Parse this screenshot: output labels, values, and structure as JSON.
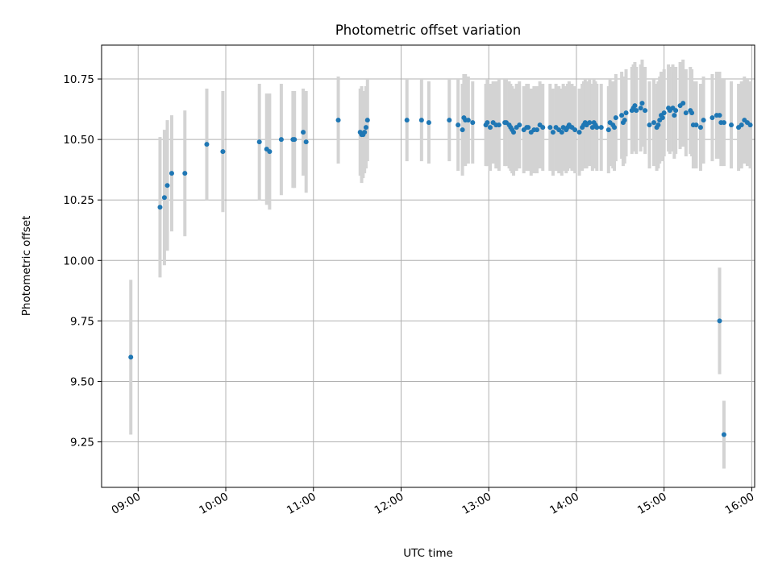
{
  "chart_data": {
    "type": "scatter",
    "title": "Photometric offset variation",
    "xlabel": "UTC time",
    "ylabel": "Photometric offset",
    "grid": true,
    "legend": "none",
    "xlim": [
      "08:35",
      "16:02"
    ],
    "ylim": [
      9.062,
      10.89
    ],
    "x_ticks": [
      "09:00",
      "10:00",
      "11:00",
      "12:00",
      "13:00",
      "14:00",
      "15:00",
      "16:00"
    ],
    "y_ticks": [
      "9.25",
      "9.50",
      "9.75",
      "10.00",
      "10.25",
      "10.50",
      "10.75"
    ],
    "colors": {
      "point": "#1f77b4",
      "errorbar": "#d3d3d3",
      "grid": "#b0b0b0"
    },
    "series": [
      {
        "x": [
          "08:55",
          "09:15",
          "09:18",
          "09:20",
          "09:23",
          "09:32",
          "09:47",
          "09:58",
          "10:23",
          "10:28",
          "10:30",
          "10:38",
          "10:46",
          "10:47",
          "10:53",
          "10:55",
          "11:17",
          "11:32",
          "11:33",
          "11:34",
          "11:35",
          "11:36",
          "11:37",
          "12:04",
          "12:14",
          "12:19",
          "12:33",
          "12:39",
          "12:42",
          "12:43",
          "12:44",
          "12:46",
          "12:49",
          "12:58",
          "12:59",
          "13:01",
          "13:03",
          "13:05",
          "13:07",
          "13:11",
          "13:12",
          "13:14",
          "13:15",
          "13:16",
          "13:17",
          "13:19",
          "13:21",
          "13:24",
          "13:26",
          "13:27",
          "13:29",
          "13:31",
          "13:33",
          "13:35",
          "13:37",
          "13:42",
          "13:44",
          "13:46",
          "13:48",
          "13:50",
          "13:51",
          "13:53",
          "13:54",
          "13:55",
          "13:57",
          "13:59",
          "14:02",
          "14:04",
          "14:05",
          "14:06",
          "14:07",
          "14:09",
          "14:11",
          "14:12",
          "14:13",
          "14:14",
          "14:17",
          "14:22",
          "14:23",
          "14:25",
          "14:26",
          "14:27",
          "14:31",
          "14:32",
          "14:33",
          "14:34",
          "14:38",
          "14:39",
          "14:40",
          "14:41",
          "14:44",
          "14:45",
          "14:47",
          "14:50",
          "14:53",
          "14:55",
          "14:56",
          "14:57",
          "14:58",
          "14:59",
          "15:00",
          "15:03",
          "15:04",
          "15:06",
          "15:07",
          "15:08",
          "15:11",
          "15:13",
          "15:15",
          "15:18",
          "15:19",
          "15:20",
          "15:22",
          "15:25",
          "15:27",
          "15:33",
          "15:36",
          "15:38",
          "15:39",
          "15:41",
          "15:46",
          "15:51",
          "15:53",
          "15:55",
          "15:57",
          "15:59",
          "15:38",
          "15:41"
        ],
        "y": [
          9.6,
          10.22,
          10.26,
          10.31,
          10.36,
          10.36,
          10.48,
          10.45,
          10.49,
          10.46,
          10.45,
          10.5,
          10.5,
          10.5,
          10.53,
          10.49,
          10.58,
          10.53,
          10.52,
          10.52,
          10.53,
          10.55,
          10.58,
          10.58,
          10.58,
          10.57,
          10.58,
          10.56,
          10.54,
          10.59,
          10.58,
          10.58,
          10.57,
          10.56,
          10.57,
          10.55,
          10.57,
          10.56,
          10.56,
          10.57,
          10.57,
          10.56,
          10.55,
          10.54,
          10.53,
          10.55,
          10.56,
          10.54,
          10.55,
          10.55,
          10.53,
          10.54,
          10.54,
          10.56,
          10.55,
          10.55,
          10.53,
          10.55,
          10.54,
          10.53,
          10.55,
          10.54,
          10.55,
          10.56,
          10.55,
          10.54,
          10.53,
          10.55,
          10.56,
          10.57,
          10.56,
          10.57,
          10.55,
          10.57,
          10.56,
          10.55,
          10.55,
          10.54,
          10.57,
          10.56,
          10.55,
          10.59,
          10.6,
          10.57,
          10.58,
          10.61,
          10.62,
          10.63,
          10.64,
          10.62,
          10.63,
          10.65,
          10.62,
          10.56,
          10.57,
          10.55,
          10.56,
          10.58,
          10.6,
          10.59,
          10.61,
          10.63,
          10.62,
          10.63,
          10.6,
          10.62,
          10.64,
          10.65,
          10.61,
          10.62,
          10.61,
          10.56,
          10.56,
          10.55,
          10.58,
          10.59,
          10.6,
          10.6,
          10.57,
          10.57,
          10.56,
          10.55,
          10.56,
          10.58,
          10.57,
          10.56,
          9.75,
          9.28
        ],
        "err": [
          0.32,
          0.29,
          0.28,
          0.27,
          0.24,
          0.26,
          0.23,
          0.25,
          0.24,
          0.23,
          0.24,
          0.23,
          0.2,
          0.2,
          0.18,
          0.21,
          0.18,
          0.18,
          0.2,
          0.18,
          0.17,
          0.17,
          0.17,
          0.17,
          0.17,
          0.17,
          0.17,
          0.19,
          0.19,
          0.18,
          0.19,
          0.18,
          0.17,
          0.17,
          0.18,
          0.18,
          0.17,
          0.18,
          0.19,
          0.18,
          0.18,
          0.18,
          0.18,
          0.18,
          0.18,
          0.18,
          0.18,
          0.18,
          0.18,
          0.18,
          0.18,
          0.18,
          0.18,
          0.18,
          0.18,
          0.18,
          0.18,
          0.18,
          0.18,
          0.18,
          0.18,
          0.18,
          0.18,
          0.18,
          0.18,
          0.18,
          0.18,
          0.18,
          0.18,
          0.18,
          0.18,
          0.18,
          0.18,
          0.18,
          0.18,
          0.18,
          0.18,
          0.18,
          0.18,
          0.18,
          0.18,
          0.18,
          0.18,
          0.18,
          0.18,
          0.18,
          0.18,
          0.18,
          0.18,
          0.18,
          0.18,
          0.18,
          0.18,
          0.18,
          0.18,
          0.18,
          0.18,
          0.18,
          0.18,
          0.18,
          0.18,
          0.18,
          0.18,
          0.18,
          0.18,
          0.18,
          0.18,
          0.18,
          0.18,
          0.18,
          0.18,
          0.18,
          0.18,
          0.18,
          0.18,
          0.18,
          0.18,
          0.18,
          0.18,
          0.18,
          0.18,
          0.18,
          0.18,
          0.18,
          0.18,
          0.18,
          0.22,
          0.14
        ]
      }
    ]
  }
}
